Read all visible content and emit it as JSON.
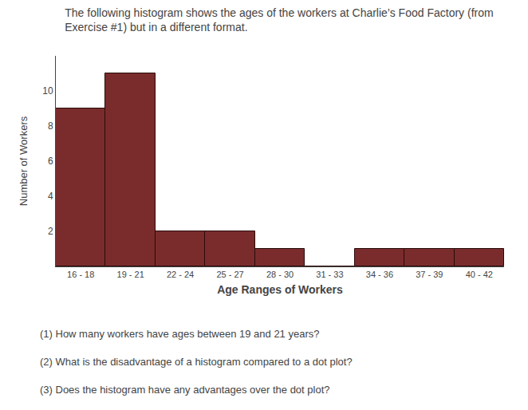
{
  "chart_data": {
    "type": "bar",
    "title": "The following histogram shows the ages of the workers at Charlie’s Food Factory (from Exercise #1) but in a different format.",
    "categories": [
      "16 - 18",
      "19 - 21",
      "22 - 24",
      "25 - 27",
      "28 - 30",
      "31 - 33",
      "34 - 36",
      "37 - 39",
      "40 - 42"
    ],
    "values": [
      9,
      11,
      2,
      2,
      1,
      0,
      1,
      1,
      1
    ],
    "color": "#7a2c2c",
    "xlabel": "Age Ranges of Workers",
    "ylabel": "Number of Workers",
    "ylim": [
      0,
      12
    ],
    "yticks": [
      2,
      4,
      6,
      8,
      10
    ],
    "grid": false,
    "annotations": [
      "(1) How many workers have ages between 19 and 21 years?",
      "(2) What is the disadvantage of a histogram compared to a dot plot?",
      "(3) Does the histogram have any advantages over the dot plot?"
    ]
  }
}
